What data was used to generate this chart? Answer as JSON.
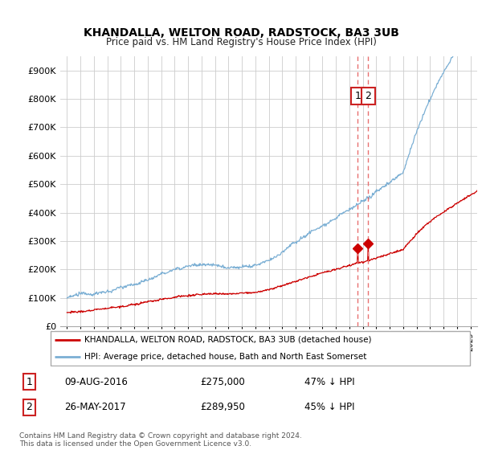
{
  "title": "KHANDALLA, WELTON ROAD, RADSTOCK, BA3 3UB",
  "subtitle": "Price paid vs. HM Land Registry's House Price Index (HPI)",
  "legend_entry1": "KHANDALLA, WELTON ROAD, RADSTOCK, BA3 3UB (detached house)",
  "legend_entry2": "HPI: Average price, detached house, Bath and North East Somerset",
  "transaction1_date": "09-AUG-2016",
  "transaction1_price": "£275,000",
  "transaction1_hpi": "47% ↓ HPI",
  "transaction2_date": "26-MAY-2017",
  "transaction2_price": "£289,950",
  "transaction2_hpi": "45% ↓ HPI",
  "footer": "Contains HM Land Registry data © Crown copyright and database right 2024.\nThis data is licensed under the Open Government Licence v3.0.",
  "hpi_color": "#7bafd4",
  "price_color": "#cc0000",
  "vline_color": "#e87070",
  "ylim_min": 0,
  "ylim_max": 950000,
  "yticks": [
    0,
    100000,
    200000,
    300000,
    400000,
    500000,
    600000,
    700000,
    800000,
    900000
  ],
  "transaction1_x": 2016.62,
  "transaction1_y": 275000,
  "transaction2_x": 2017.4,
  "transaction2_y": 289950,
  "xlim_min": 1994.5,
  "xlim_max": 2025.5
}
